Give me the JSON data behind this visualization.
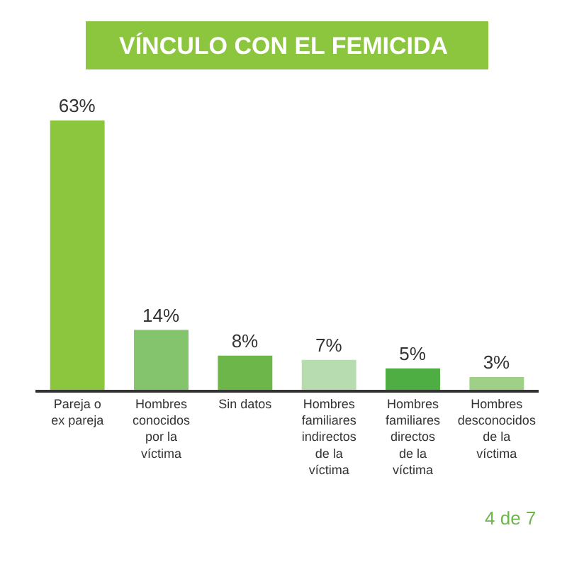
{
  "chart_data": {
    "type": "bar",
    "title": "VÍNCULO CON EL FEMICIDA",
    "categories": [
      "Pareja o ex pareja",
      "Hombres conocidos por la víctima",
      "Sin datos",
      "Hombres familiares indirectos de la víctima",
      "Hombres familiares directos de la víctima",
      "Hombres desconocidos de la víctima"
    ],
    "values": [
      63,
      14,
      8,
      7,
      5,
      3
    ],
    "colors": [
      "#8cc63f",
      "#84c46c",
      "#6cb64a",
      "#b6dcb0",
      "#4fae43",
      "#9fd088"
    ],
    "value_labels": [
      "63%",
      "14%",
      "8%",
      "7%",
      "5%",
      "3%"
    ],
    "annotations": [
      "4 de 7"
    ],
    "grid": false
  }
}
